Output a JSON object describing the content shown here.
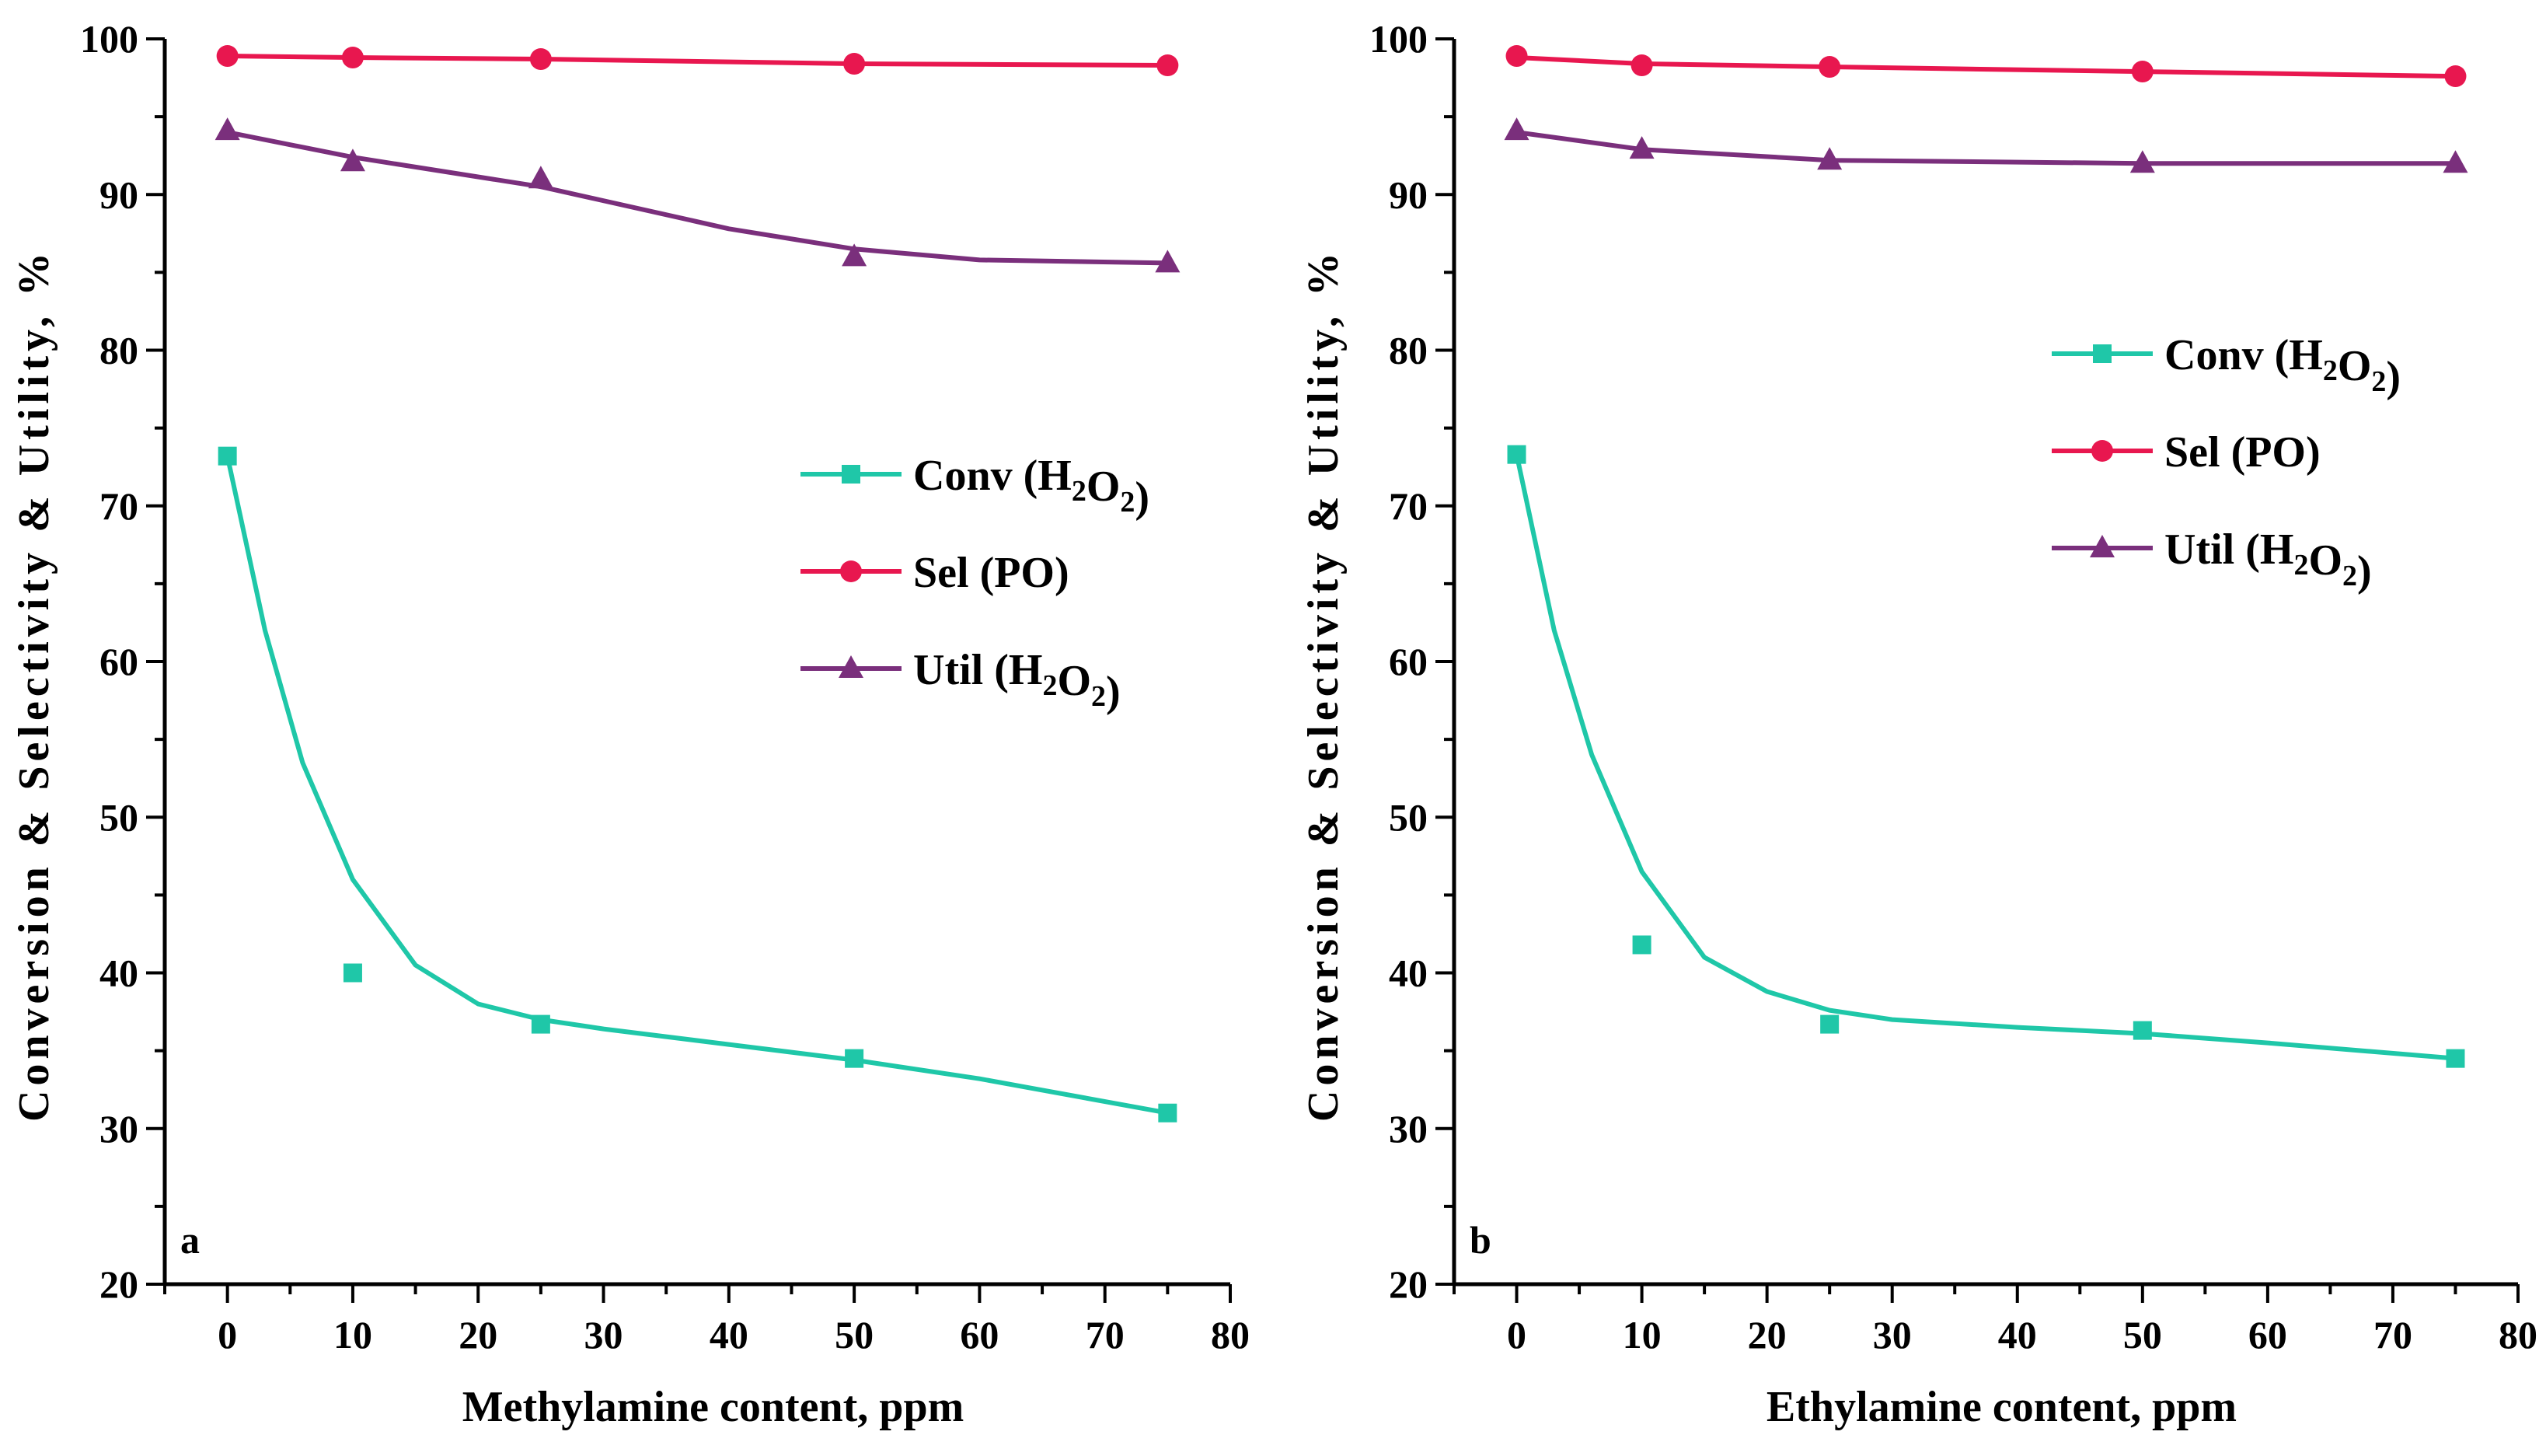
{
  "chart_data": [
    {
      "type": "scatter",
      "panel_label": "a",
      "xlabel": "Methylamine content, ppm",
      "ylabel": "Conversion & Selectivity & Utility, %",
      "xlim": [
        -5,
        80
      ],
      "ylim": [
        20,
        100
      ],
      "xticks": [
        0,
        10,
        20,
        30,
        40,
        50,
        60,
        70,
        80
      ],
      "yticks": [
        20,
        30,
        40,
        50,
        60,
        70,
        80,
        90,
        100
      ],
      "legend_placement": "center-right",
      "series": [
        {
          "name": "Conv",
          "subscript_name": "H2O2",
          "marker": "square",
          "color": "#1fc7a8",
          "x": [
            0,
            10,
            25,
            50,
            75
          ],
          "values": [
            73.2,
            40.0,
            36.7,
            34.5,
            31.0
          ]
        },
        {
          "name": "Sel",
          "paren_name": "PO",
          "marker": "circle",
          "color": "#e8174f",
          "x": [
            0,
            10,
            25,
            50,
            75
          ],
          "values": [
            98.9,
            98.8,
            98.7,
            98.4,
            98.3
          ]
        },
        {
          "name": "Util",
          "subscript_name": "H2O2",
          "marker": "triangle",
          "color": "#7a2f7c",
          "x": [
            0,
            10,
            25,
            50,
            75
          ],
          "values": [
            94.1,
            92.1,
            91.0,
            86.0,
            85.6
          ]
        }
      ],
      "fits": [
        {
          "series": "Conv",
          "color": "#1fc7a8",
          "x": [
            0,
            3,
            6,
            10,
            15,
            20,
            25,
            30,
            40,
            50,
            60,
            75
          ],
          "y": [
            73.2,
            62.0,
            53.5,
            46.0,
            40.5,
            38.0,
            37.0,
            36.4,
            35.4,
            34.4,
            33.2,
            31.0
          ]
        },
        {
          "series": "Sel",
          "color": "#e8174f",
          "x": [
            0,
            10,
            25,
            50,
            75
          ],
          "y": [
            98.9,
            98.8,
            98.7,
            98.4,
            98.3
          ]
        },
        {
          "series": "Util",
          "color": "#7a2f7c",
          "x": [
            0,
            10,
            25,
            40,
            50,
            60,
            75
          ],
          "y": [
            94.0,
            92.4,
            90.5,
            87.8,
            86.5,
            85.8,
            85.6
          ]
        }
      ]
    },
    {
      "type": "scatter",
      "panel_label": "b",
      "xlabel": "Ethylamine content, ppm",
      "ylabel": "Conversion & Selectivity & Utility, %",
      "xlim": [
        -5,
        80
      ],
      "ylim": [
        20,
        100
      ],
      "xticks": [
        0,
        10,
        20,
        30,
        40,
        50,
        60,
        70,
        80
      ],
      "yticks": [
        20,
        30,
        40,
        50,
        60,
        70,
        80,
        90,
        100
      ],
      "legend_placement": "upper-right",
      "series": [
        {
          "name": "Conv",
          "subscript_name": "H2O2",
          "marker": "square",
          "color": "#1fc7a8",
          "x": [
            0,
            10,
            25,
            50,
            75
          ],
          "values": [
            73.3,
            41.8,
            36.7,
            36.3,
            34.5
          ]
        },
        {
          "name": "Sel",
          "paren_name": "PO",
          "marker": "circle",
          "color": "#e8174f",
          "x": [
            0,
            10,
            25,
            50,
            75
          ],
          "values": [
            98.9,
            98.3,
            98.2,
            97.9,
            97.6
          ]
        },
        {
          "name": "Util",
          "subscript_name": "H2O2",
          "marker": "triangle",
          "color": "#7a2f7c",
          "x": [
            0,
            10,
            25,
            50,
            75
          ],
          "values": [
            94.1,
            92.9,
            92.2,
            92.0,
            92.0
          ]
        }
      ],
      "fits": [
        {
          "series": "Conv",
          "color": "#1fc7a8",
          "x": [
            0,
            3,
            6,
            10,
            15,
            20,
            25,
            30,
            40,
            50,
            60,
            75
          ],
          "y": [
            73.3,
            62.0,
            54.0,
            46.5,
            41.0,
            38.8,
            37.6,
            37.0,
            36.5,
            36.1,
            35.5,
            34.5
          ]
        },
        {
          "series": "Sel",
          "color": "#e8174f",
          "x": [
            0,
            10,
            25,
            50,
            75
          ],
          "y": [
            98.8,
            98.4,
            98.2,
            97.9,
            97.6
          ]
        },
        {
          "series": "Util",
          "color": "#7a2f7c",
          "x": [
            0,
            10,
            25,
            50,
            75
          ],
          "y": [
            94.0,
            92.9,
            92.2,
            92.0,
            92.0
          ]
        }
      ]
    }
  ]
}
